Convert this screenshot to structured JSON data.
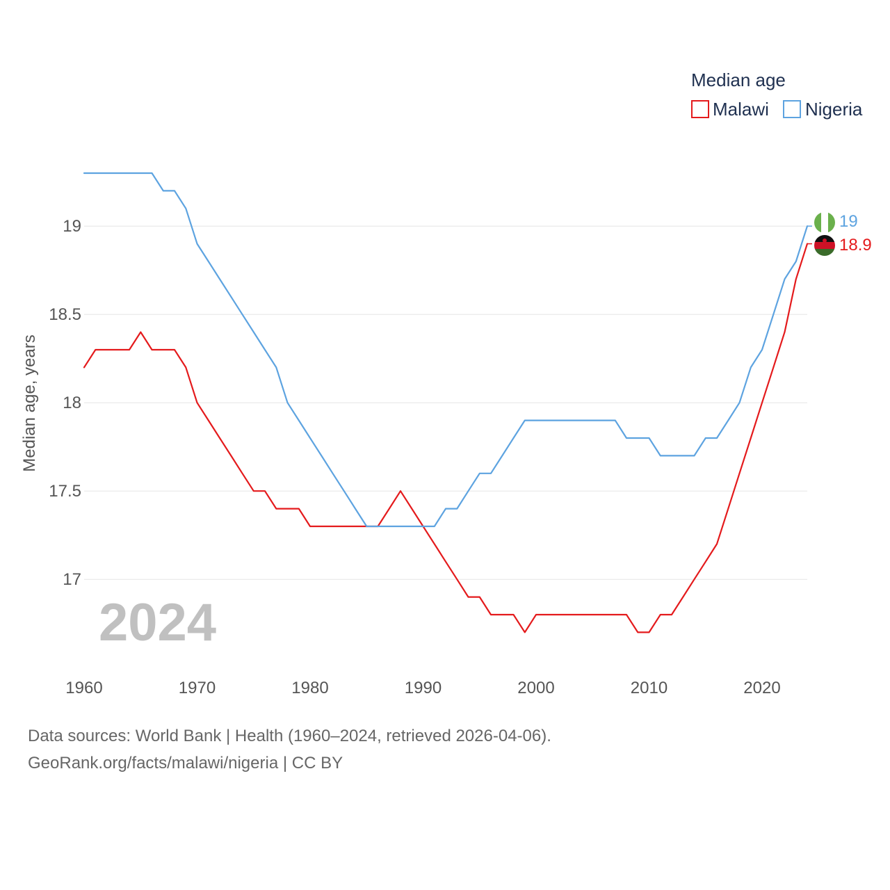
{
  "chart_data": {
    "type": "line",
    "title": "Median age",
    "ylabel": "Median age, years",
    "xlabel": "",
    "xlim": [
      1960,
      2024
    ],
    "ylim": [
      16.5,
      19.5
    ],
    "x_ticks": [
      1960,
      1970,
      1980,
      1990,
      2000,
      2010,
      2020
    ],
    "y_ticks": [
      17,
      17.5,
      18,
      18.5,
      19
    ],
    "y_tick_labels": [
      "17",
      "17.5",
      "18",
      "18.5",
      "19"
    ],
    "grid": true,
    "legend_position": "top-right",
    "year_label": "2024",
    "x": [
      1960,
      1961,
      1962,
      1963,
      1964,
      1965,
      1966,
      1967,
      1968,
      1969,
      1970,
      1971,
      1972,
      1973,
      1974,
      1975,
      1976,
      1977,
      1978,
      1979,
      1980,
      1981,
      1982,
      1983,
      1984,
      1985,
      1986,
      1987,
      1988,
      1989,
      1990,
      1991,
      1992,
      1993,
      1994,
      1995,
      1996,
      1997,
      1998,
      1999,
      2000,
      2001,
      2002,
      2003,
      2004,
      2005,
      2006,
      2007,
      2008,
      2009,
      2010,
      2011,
      2012,
      2013,
      2014,
      2015,
      2016,
      2017,
      2018,
      2019,
      2020,
      2021,
      2022,
      2023,
      2024
    ],
    "series": [
      {
        "name": "Malawi",
        "color": "#e41a1c",
        "end_label": "18.9",
        "values": [
          18.2,
          18.3,
          18.3,
          18.3,
          18.3,
          18.4,
          18.3,
          18.3,
          18.3,
          18.2,
          18.0,
          17.9,
          17.8,
          17.7,
          17.6,
          17.5,
          17.5,
          17.4,
          17.4,
          17.4,
          17.3,
          17.3,
          17.3,
          17.3,
          17.3,
          17.3,
          17.3,
          17.4,
          17.5,
          17.4,
          17.3,
          17.2,
          17.1,
          17.0,
          16.9,
          16.9,
          16.8,
          16.8,
          16.8,
          16.7,
          16.8,
          16.8,
          16.8,
          16.8,
          16.8,
          16.8,
          16.8,
          16.8,
          16.8,
          16.7,
          16.7,
          16.8,
          16.8,
          16.9,
          17.0,
          17.1,
          17.2,
          17.4,
          17.6,
          17.8,
          18.0,
          18.2,
          18.4,
          18.7,
          18.9
        ]
      },
      {
        "name": "Nigeria",
        "color": "#5da3e0",
        "end_label": "19",
        "values": [
          19.3,
          19.3,
          19.3,
          19.3,
          19.3,
          19.3,
          19.3,
          19.2,
          19.2,
          19.1,
          18.9,
          18.8,
          18.7,
          18.6,
          18.5,
          18.4,
          18.3,
          18.2,
          18.0,
          17.9,
          17.8,
          17.7,
          17.6,
          17.5,
          17.4,
          17.3,
          17.3,
          17.3,
          17.3,
          17.3,
          17.3,
          17.3,
          17.4,
          17.4,
          17.5,
          17.6,
          17.6,
          17.7,
          17.8,
          17.9,
          17.9,
          17.9,
          17.9,
          17.9,
          17.9,
          17.9,
          17.9,
          17.9,
          17.8,
          17.8,
          17.8,
          17.7,
          17.7,
          17.7,
          17.7,
          17.8,
          17.8,
          17.9,
          18.0,
          18.2,
          18.3,
          18.5,
          18.7,
          18.8,
          19.0
        ]
      }
    ]
  },
  "footer": {
    "sources": "Data sources: World Bank | Health (1960–2024, retrieved 2026-04-06).",
    "credit": "GeoRank.org/facts/malawi/nigeria | CC BY"
  },
  "colors": {
    "malawi_flag_black": "#111111",
    "malawi_flag_red": "#ce1126",
    "malawi_flag_green": "#3a6b2a",
    "nigeria_flag_green": "#6ab04c",
    "nigeria_flag_white": "#ffffff"
  }
}
